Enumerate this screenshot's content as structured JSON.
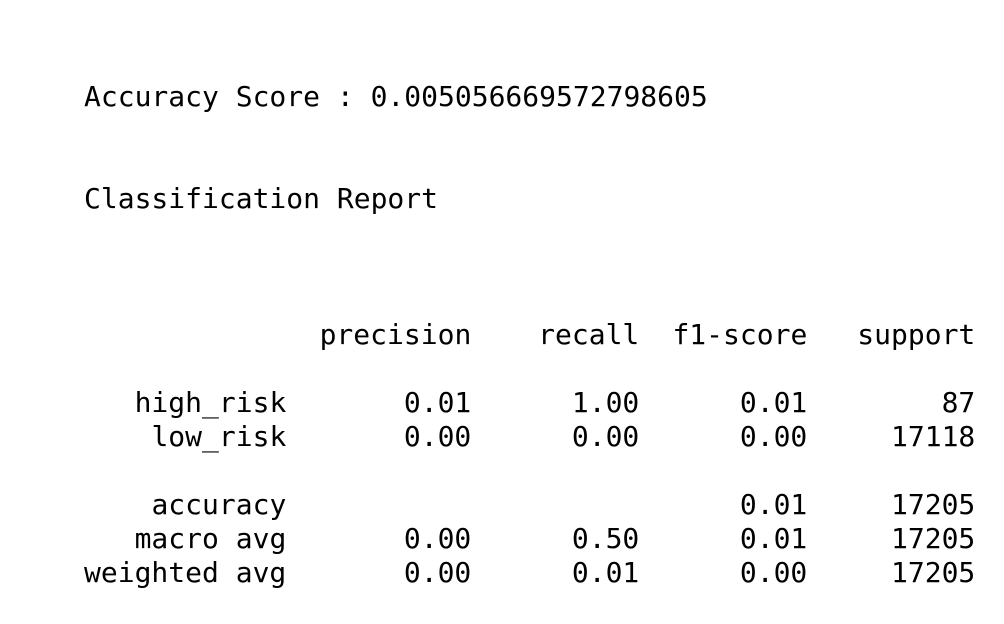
{
  "accuracy_line": "Accuracy Score : 0.005056669572798605",
  "report_title": "Classification Report",
  "report": {
    "columns": [
      "precision",
      "recall",
      "f1-score",
      "support"
    ],
    "rows": [
      {
        "label": "high_risk",
        "precision": "0.01",
        "recall": "1.00",
        "f1": "0.01",
        "support": "87"
      },
      {
        "label": "low_risk",
        "precision": "0.00",
        "recall": "0.00",
        "f1": "0.00",
        "support": "17118"
      },
      {
        "label": "accuracy",
        "precision": "",
        "recall": "",
        "f1": "0.01",
        "support": "17205"
      },
      {
        "label": "macro avg",
        "precision": "0.00",
        "recall": "0.50",
        "f1": "0.01",
        "support": "17205"
      },
      {
        "label": "weighted avg",
        "precision": "0.00",
        "recall": "0.01",
        "f1": "0.00",
        "support": "17205"
      }
    ]
  }
}
